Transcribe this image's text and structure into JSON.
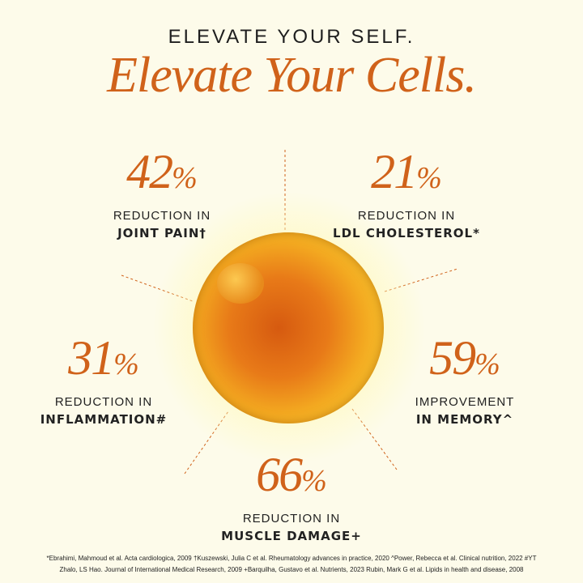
{
  "header": {
    "kicker": "ELEVATE YOUR SELF.",
    "headline": "Elevate Your Cells."
  },
  "stats": [
    {
      "value": "42",
      "unit": "%",
      "line1": "REDUCTION IN",
      "line2": "JOINT PAIN†"
    },
    {
      "value": "21",
      "unit": "%",
      "line1": "REDUCTION IN",
      "line2": "LDL CHOLESTEROL*"
    },
    {
      "value": "31",
      "unit": "%",
      "line1": "REDUCTION IN",
      "line2": "INFLAMMATION#"
    },
    {
      "value": "59",
      "unit": "%",
      "line1": "IMPROVEMENT",
      "line2": "IN MEMORY^"
    },
    {
      "value": "66",
      "unit": "%",
      "line1": "REDUCTION IN",
      "line2": "MUSCLE DAMAGE+"
    }
  ],
  "footnote": {
    "line1": "*Ebrahimi, Mahmoud et al. Acta cardiologica, 2009 †Kuszewski, Julia C et al. Rheumatology advances in practice, 2020 ^Power, Rebecca et al. Clinical nutrition, 2022 #YT",
    "line2": "Zhalo, LS Hao. Journal of International Medical Research, 2009 +Barquilha, Gustavo et al. Nutrients, 2023 Rubin, Mark G et al. Lipids in health and disease, 2008"
  },
  "colors": {
    "accent": "#d0621a",
    "background": "#fdfbea",
    "text": "#1e1e1e"
  }
}
